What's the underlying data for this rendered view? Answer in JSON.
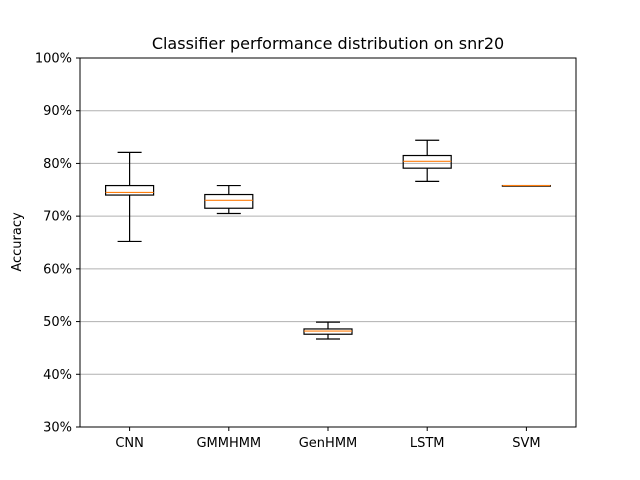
{
  "chart_data": {
    "type": "box",
    "title": "Classifier performance distribution on snr20",
    "xlabel": "",
    "ylabel": "Accuracy",
    "ylim": [
      30,
      100
    ],
    "y_unit": "%",
    "y_ticks": [
      30,
      40,
      50,
      60,
      70,
      80,
      90,
      100
    ],
    "y_tick_labels": [
      "30%",
      "40%",
      "50%",
      "60%",
      "70%",
      "80%",
      "90%",
      "100%"
    ],
    "grid": "horizontal",
    "categories": [
      "CNN",
      "GMMHMM",
      "GenHMM",
      "LSTM",
      "SVM"
    ],
    "boxes": [
      {
        "label": "CNN",
        "whisker_low": 65.2,
        "q1": 74.0,
        "median": 74.5,
        "q3": 75.8,
        "whisker_high": 82.1
      },
      {
        "label": "GMMHMM",
        "whisker_low": 70.5,
        "q1": 71.5,
        "median": 73.0,
        "q3": 74.1,
        "whisker_high": 75.8
      },
      {
        "label": "GenHMM",
        "whisker_low": 46.7,
        "q1": 47.6,
        "median": 48.2,
        "q3": 48.6,
        "whisker_high": 49.9
      },
      {
        "label": "LSTM",
        "whisker_low": 76.6,
        "q1": 79.1,
        "median": 80.4,
        "q3": 81.5,
        "whisker_high": 84.4
      },
      {
        "label": "SVM",
        "whisker_low": 75.8,
        "q1": 75.8,
        "median": 75.8,
        "q3": 75.8,
        "whisker_high": 75.8
      }
    ],
    "colors": {
      "box": "#000000",
      "median": "#ff7f0e",
      "grid": "#b0b0b0"
    }
  }
}
